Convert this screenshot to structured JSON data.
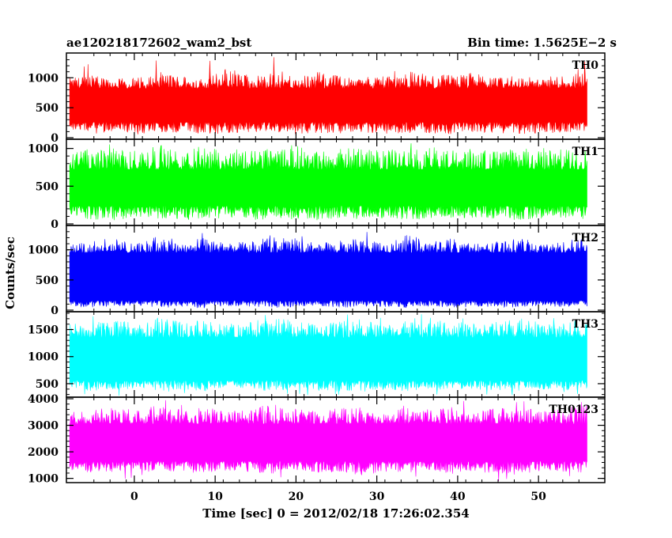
{
  "header": {
    "title": "ae120218172602_wam2_bst",
    "bin_time": "Bin time: 1.5625E−2 s"
  },
  "chart_data": {
    "type": "line",
    "title": "ae120218172602_wam2_bst",
    "xlabel": "Time [sec] 0 = 2012/02/18 17:26:02.354",
    "ylabel": "Counts/sec",
    "xlim": [
      -8.4,
      58.2
    ],
    "x_ticks": [
      0,
      10,
      20,
      30,
      40,
      50
    ],
    "x_tick_labels": [
      "0",
      "10",
      "20",
      "30",
      "40",
      "50"
    ],
    "data_x_range": [
      -8.0,
      56.0
    ],
    "bin_time_s": 0.015625,
    "panels": [
      {
        "name": "TH0",
        "color": "#ff0000",
        "ylim": [
          0,
          1360
        ],
        "y_ticks": [
          0,
          500,
          1000
        ],
        "y_tick_labels": [
          "0",
          "500",
          "1000"
        ],
        "baseline": 0,
        "upper_envelope": [
          1000,
          1050,
          980,
          1010,
          1100,
          1050,
          990,
          1200,
          1050,
          1080,
          1020,
          1100,
          1050,
          1000,
          1080,
          1150,
          1040,
          1060,
          1100,
          1000,
          1050,
          980,
          1090,
          1100
        ],
        "lower_envelope": [
          120,
          60,
          80,
          40,
          90,
          70,
          60,
          50,
          80,
          100,
          60,
          70,
          50,
          90,
          60,
          80,
          70,
          60,
          90,
          80,
          60,
          70,
          80,
          90
        ],
        "dense_high": 820,
        "dense_low": 260,
        "max_value": 1350
      },
      {
        "name": "TH1",
        "color": "#00ff00",
        "ylim": [
          0,
          1080
        ],
        "y_ticks": [
          0,
          500,
          1000
        ],
        "y_tick_labels": [
          "0",
          "500",
          "1000"
        ],
        "baseline": 0,
        "upper_envelope": [
          950,
          1000,
          980,
          1000,
          1050,
          980,
          1000,
          1020,
          990,
          1000,
          1050,
          980,
          1000,
          1020,
          970,
          1000,
          1010,
          990,
          1000,
          980,
          1000,
          1020,
          990,
          1000
        ],
        "lower_envelope": [
          90,
          60,
          40,
          80,
          70,
          50,
          60,
          80,
          40,
          70,
          60,
          50,
          80,
          60,
          70,
          50,
          60,
          80,
          70,
          60,
          50,
          70,
          80,
          60
        ],
        "dense_high": 720,
        "dense_low": 240,
        "max_value": 1070
      },
      {
        "name": "TH2",
        "color": "#0000ff",
        "ylim": [
          0,
          1350
        ],
        "y_ticks": [
          0,
          500,
          1000
        ],
        "y_tick_labels": [
          "0",
          "500",
          "1000"
        ],
        "baseline": 0,
        "upper_envelope": [
          1100,
          1150,
          1200,
          1100,
          1250,
          1150,
          1200,
          1100,
          1150,
          1250,
          1200,
          1100,
          1150,
          1200,
          1100,
          1250,
          1150,
          1200,
          1100,
          1150,
          1200,
          1100,
          1150,
          1200
        ],
        "lower_envelope": [
          50,
          30,
          60,
          80,
          40,
          50,
          30,
          70,
          60,
          40,
          50,
          80,
          30,
          60,
          50,
          40,
          70,
          30,
          60,
          50,
          40,
          70,
          50,
          60
        ],
        "dense_high": 950,
        "dense_low": 160,
        "max_value": 1340
      },
      {
        "name": "TH3",
        "color": "#00ffff",
        "ylim": [
          280,
          1800
        ],
        "y_ticks": [
          500,
          1000,
          1500
        ],
        "y_tick_labels": [
          "500",
          "1000",
          "1500"
        ],
        "baseline": 280,
        "upper_envelope": [
          1600,
          1650,
          1700,
          1600,
          1750,
          1650,
          1700,
          1600,
          1650,
          1750,
          1700,
          1600,
          1650,
          1700,
          1600,
          1750,
          1650,
          1700,
          1600,
          1650,
          1700,
          1600,
          1650,
          1700
        ],
        "lower_envelope": [
          400,
          350,
          380,
          420,
          360,
          390,
          350,
          410,
          380,
          360,
          400,
          370,
          350,
          390,
          380,
          360,
          410,
          370,
          390,
          380,
          360,
          400,
          380,
          390
        ],
        "dense_high": 1350,
        "dense_low": 560,
        "max_value": 1790
      },
      {
        "name": "TH0123",
        "color": "#ff00ff",
        "ylim": [
          900,
          4000
        ],
        "y_ticks": [
          1000,
          2000,
          3000,
          4000
        ],
        "y_tick_labels": [
          "1000",
          "2000",
          "3000",
          "4000"
        ],
        "baseline": 900,
        "upper_envelope": [
          3500,
          3600,
          3700,
          3550,
          3800,
          3600,
          3700,
          3500,
          3650,
          3800,
          3700,
          3550,
          3650,
          3750,
          3500,
          3800,
          3600,
          3700,
          3550,
          3650,
          3750,
          3500,
          3650,
          3850
        ],
        "lower_envelope": [
          1300,
          1200,
          1250,
          1350,
          1150,
          1250,
          1200,
          1300,
          1250,
          1150,
          1300,
          1200,
          1250,
          1100,
          1250,
          1200,
          1300,
          1150,
          1250,
          1200,
          1100,
          1300,
          1250,
          1200
        ],
        "dense_high": 3050,
        "dense_low": 1650,
        "max_value": 3950
      }
    ],
    "grid": false,
    "legend": "none"
  }
}
